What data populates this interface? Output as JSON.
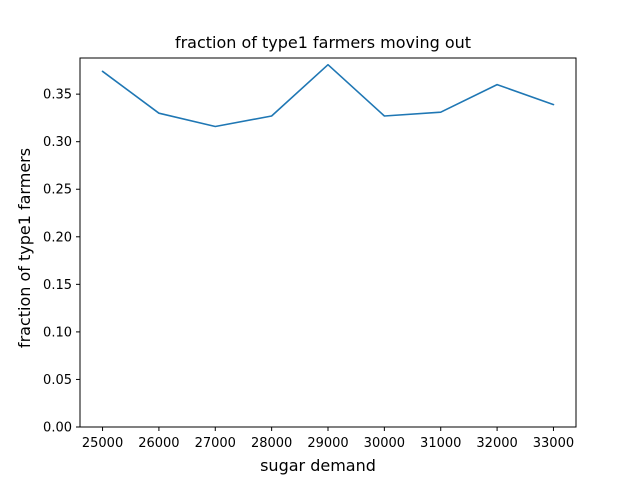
{
  "chart_data": {
    "type": "line",
    "title": "fraction of type1 farmers moving out",
    "xlabel": "sugar demand",
    "ylabel": "fraction of type1 farmers",
    "x": [
      25000,
      26000,
      27000,
      28000,
      29000,
      30000,
      31000,
      32000,
      33000
    ],
    "series": [
      {
        "values": [
          0.374,
          0.33,
          0.316,
          0.327,
          0.381,
          0.327,
          0.331,
          0.36,
          0.339
        ],
        "color": "#1f77b4"
      }
    ],
    "xlim": [
      24600,
      33400
    ],
    "ylim": [
      0.0,
      0.388
    ],
    "xticks": [
      25000,
      26000,
      27000,
      28000,
      29000,
      30000,
      31000,
      32000,
      33000
    ],
    "xtick_labels": [
      "25000",
      "26000",
      "27000",
      "28000",
      "29000",
      "30000",
      "31000",
      "32000",
      "33000"
    ],
    "yticks": [
      0.0,
      0.05,
      0.1,
      0.15,
      0.2,
      0.25,
      0.3,
      0.35
    ],
    "ytick_labels": [
      "0.00",
      "0.05",
      "0.10",
      "0.15",
      "0.20",
      "0.25",
      "0.30",
      "0.35"
    ],
    "grid": false,
    "legend": "none"
  }
}
